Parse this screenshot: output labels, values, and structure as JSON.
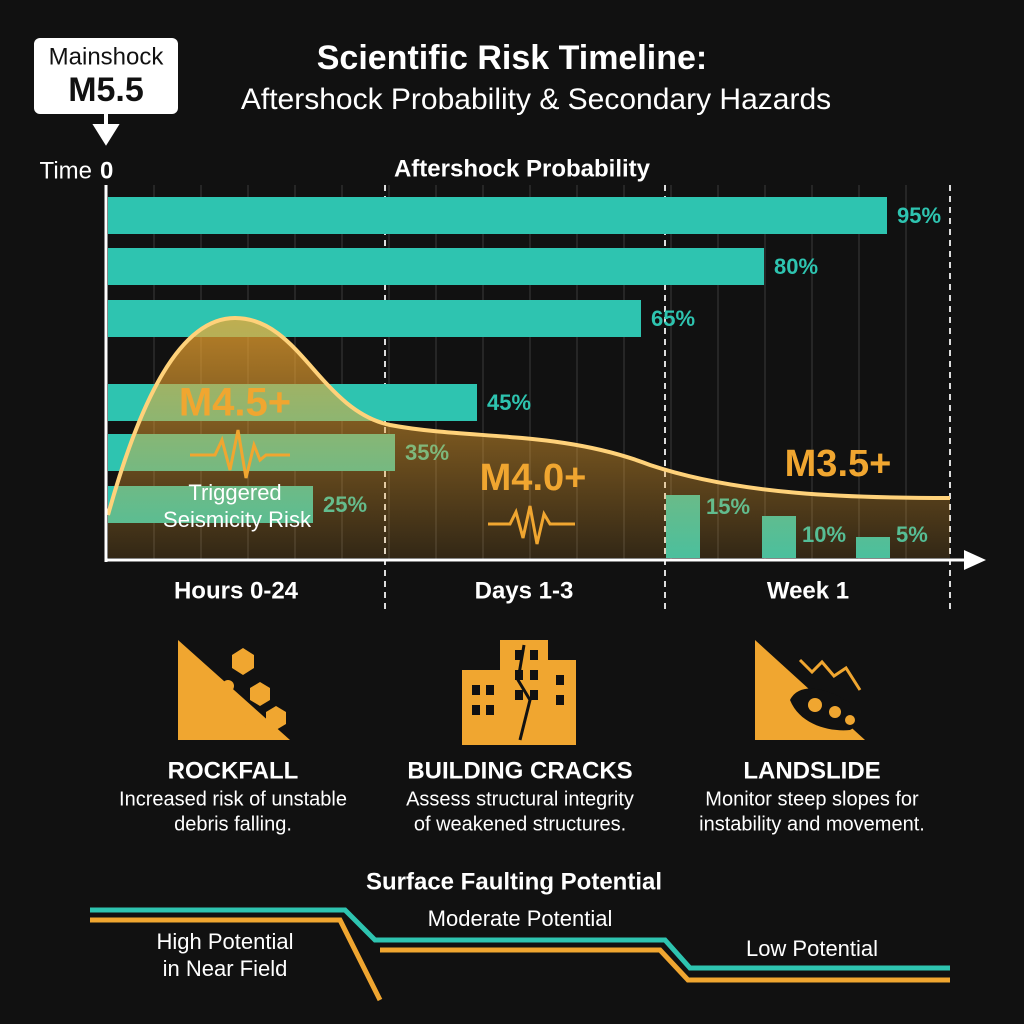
{
  "header": {
    "mainshock_label": "Mainshock",
    "mainshock_magnitude": "M5.5",
    "title": "Scientific Risk Timeline:",
    "subtitle": "Aftershock Probability & Secondary Hazards",
    "time_label": "Time",
    "time_zero": "0"
  },
  "chart_data": {
    "type": "bar",
    "title": "Aftershock Probability",
    "values": [
      95,
      80,
      65,
      45,
      35,
      25,
      15,
      10,
      5
    ],
    "value_labels": [
      "95%",
      "80%",
      "65%",
      "45%",
      "35%",
      "25%",
      "15%",
      "10%",
      "5%"
    ],
    "color": "#2ec4b0",
    "phases": [
      "Hours 0-24",
      "Days 1-3",
      "Week 1"
    ],
    "annotations": [
      "M4.5+",
      "Triggered",
      "Seismicity Risk",
      "M4.0+",
      "M3.5+"
    ]
  },
  "hazards": [
    {
      "title": "ROCKFALL",
      "lines": [
        "Increased risk of unstable",
        "debris falling."
      ]
    },
    {
      "title": "BUILDING CRACKS",
      "lines": [
        "Assess structural integrity",
        "of weakened structures."
      ]
    },
    {
      "title": "LANDSLIDE",
      "lines": [
        "Monitor steep slopes for",
        "instability and movement."
      ]
    }
  ],
  "faulting": {
    "title": "Surface Faulting Potential",
    "high": [
      "High Potential",
      "in Near Field"
    ],
    "moderate": "Moderate Potential",
    "low": "Low Potential"
  }
}
